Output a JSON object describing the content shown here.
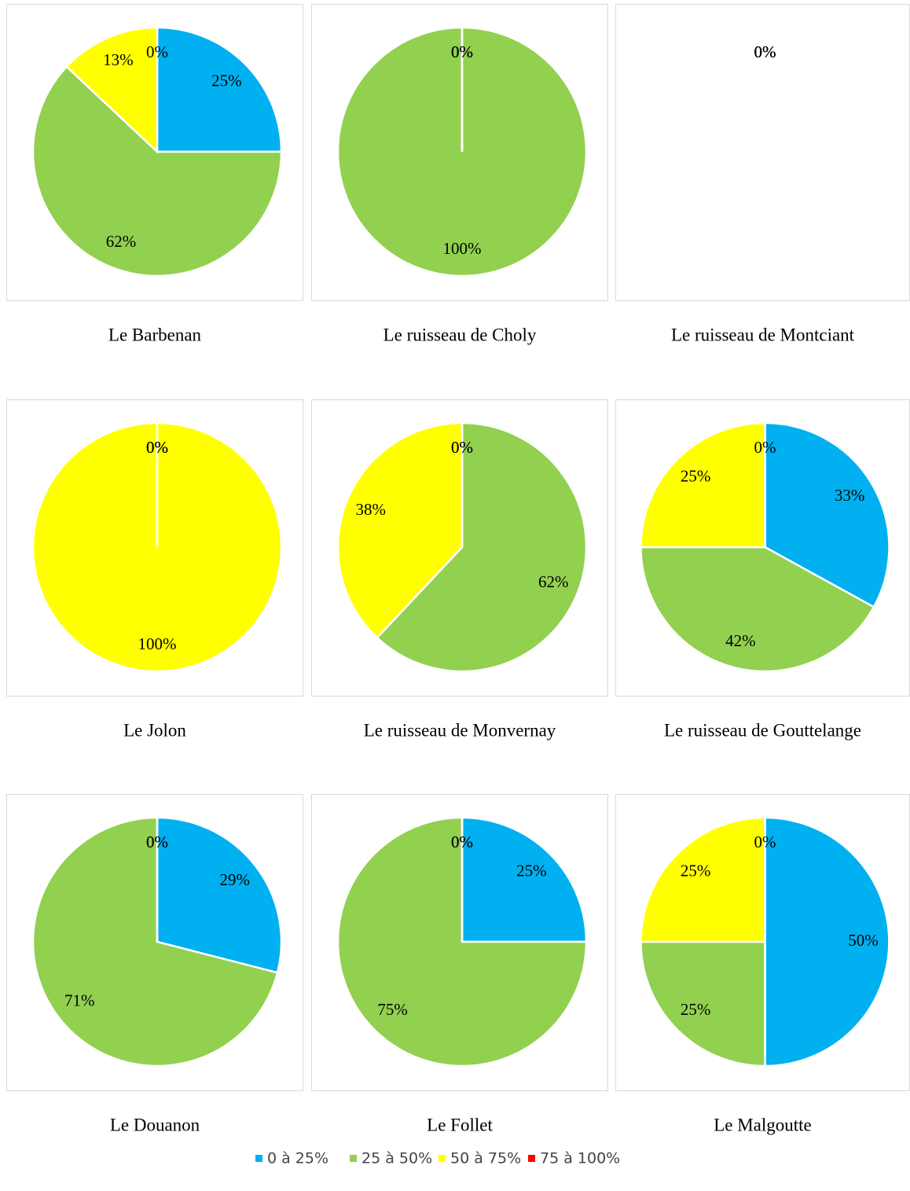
{
  "chart_data": [
    {
      "type": "pie",
      "title": "Le Barbenan",
      "categories": [
        "0 à 25%",
        "25 à 50%",
        "50 à 75%",
        "75 à 100%"
      ],
      "colors": [
        "#00b0f0",
        "#92d050",
        "#ffff00",
        "#ff0000"
      ],
      "values": [
        25,
        62,
        13,
        0
      ],
      "value_labels": [
        "25%",
        "62%",
        "13%",
        "0%"
      ]
    },
    {
      "type": "pie",
      "title": "Le ruisseau de Choly",
      "categories": [
        "0 à 25%",
        "25 à 50%",
        "50 à 75%",
        "75 à 100%"
      ],
      "colors": [
        "#00b0f0",
        "#92d050",
        "#ffff00",
        "#ff0000"
      ],
      "values": [
        0,
        100,
        0,
        0
      ],
      "value_labels": [
        "0%",
        "100%",
        "0%",
        "0%"
      ]
    },
    {
      "type": "pie",
      "title": "Le ruisseau de Montciant",
      "categories": [
        "0 à 25%",
        "25 à 50%",
        "50 à 75%",
        "75 à 100%"
      ],
      "colors": [
        "#00b0f0",
        "#92d050",
        "#ffff00",
        "#ff0000"
      ],
      "values": [
        0,
        0,
        0,
        0
      ],
      "value_labels": [
        "0%",
        "0%",
        "0%",
        "0%"
      ]
    },
    {
      "type": "pie",
      "title": "Le Jolon",
      "categories": [
        "0 à 25%",
        "25 à 50%",
        "50 à 75%",
        "75 à 100%"
      ],
      "colors": [
        "#00b0f0",
        "#92d050",
        "#ffff00",
        "#ff0000"
      ],
      "values": [
        0,
        0,
        100,
        0
      ],
      "value_labels": [
        "0%",
        "0%",
        "100%",
        "0%"
      ]
    },
    {
      "type": "pie",
      "title": "Le ruisseau de Monvernay",
      "categories": [
        "0 à 25%",
        "25 à 50%",
        "50 à 75%",
        "75 à 100%"
      ],
      "colors": [
        "#00b0f0",
        "#92d050",
        "#ffff00",
        "#ff0000"
      ],
      "values": [
        0,
        62,
        38,
        0
      ],
      "value_labels": [
        "0%",
        "62%",
        "38%",
        "0%"
      ]
    },
    {
      "type": "pie",
      "title": "Le ruisseau de Gouttelange",
      "categories": [
        "0 à 25%",
        "25 à 50%",
        "50 à 75%",
        "75 à 100%"
      ],
      "colors": [
        "#00b0f0",
        "#92d050",
        "#ffff00",
        "#ff0000"
      ],
      "values": [
        33,
        42,
        25,
        0
      ],
      "value_labels": [
        "33%",
        "42%",
        "25%",
        "0%"
      ]
    },
    {
      "type": "pie",
      "title": "Le Douanon",
      "categories": [
        "0 à 25%",
        "25 à 50%",
        "50 à 75%",
        "75 à 100%"
      ],
      "colors": [
        "#00b0f0",
        "#92d050",
        "#ffff00",
        "#ff0000"
      ],
      "values": [
        29,
        71,
        0,
        0
      ],
      "value_labels": [
        "29%",
        "71%",
        "0%",
        "0%"
      ]
    },
    {
      "type": "pie",
      "title": "Le Follet",
      "categories": [
        "0 à 25%",
        "25 à 50%",
        "50 à 75%",
        "75 à 100%"
      ],
      "colors": [
        "#00b0f0",
        "#92d050",
        "#ffff00",
        "#ff0000"
      ],
      "values": [
        25,
        75,
        0,
        0
      ],
      "value_labels": [
        "25%",
        "75%",
        "0%",
        "0%"
      ]
    },
    {
      "type": "pie",
      "title": "Le Malgoutte",
      "categories": [
        "0 à 25%",
        "25 à 50%",
        "50 à 75%",
        "75 à 100%"
      ],
      "colors": [
        "#00b0f0",
        "#92d050",
        "#ffff00",
        "#ff0000"
      ],
      "values": [
        50,
        25,
        25,
        0
      ],
      "value_labels": [
        "50%",
        "25%",
        "25%",
        "0%"
      ]
    }
  ]
}
